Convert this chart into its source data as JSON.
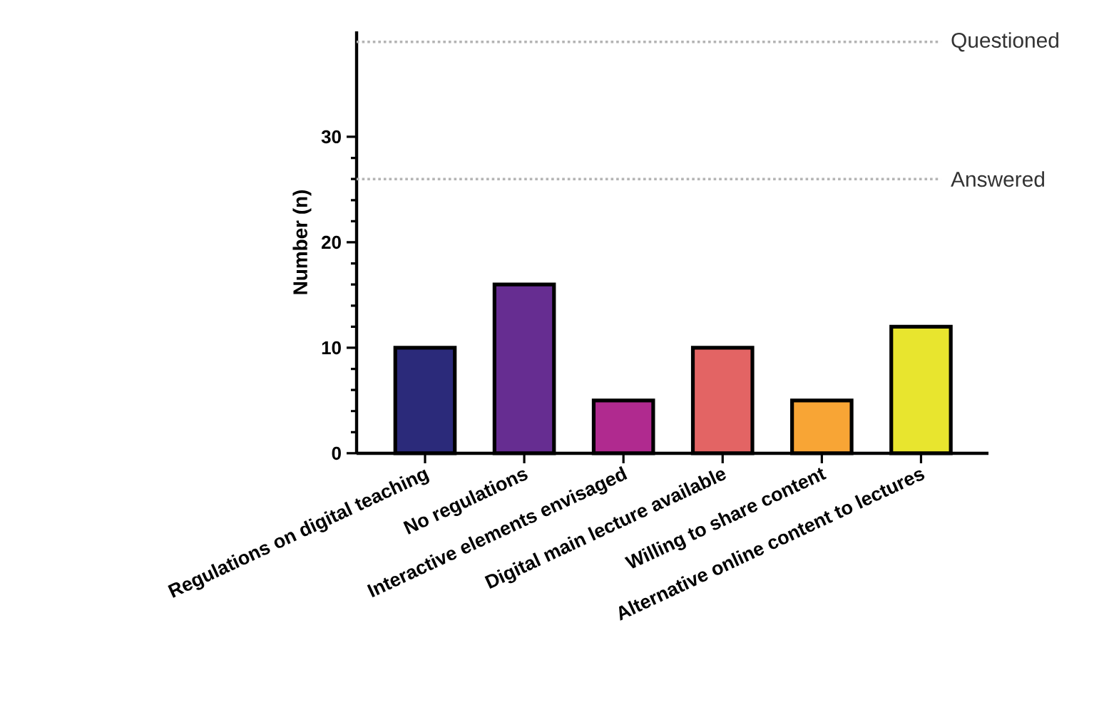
{
  "chart_data": {
    "type": "bar",
    "ylabel": "Number (n)",
    "categories": [
      "Regulations on digital teaching",
      "No regulations",
      "Interactive elements envisaged",
      "Digital main lecture available",
      "Willing to share content",
      "Alternative online content to lectures"
    ],
    "values": [
      10,
      16,
      5,
      10,
      5,
      12
    ],
    "colors": [
      "#2b2a7a",
      "#662d91",
      "#b02a8f",
      "#e36464",
      "#f8a535",
      "#e8e52e"
    ],
    "ylim": [
      0,
      40
    ],
    "yticks": [
      0,
      10,
      20,
      30
    ],
    "ref_lines": [
      {
        "axis": "y",
        "value": 39,
        "label": "Questioned",
        "color": "#b4b4b4",
        "line_style": "dotted"
      },
      {
        "axis": "y",
        "value": 26,
        "label": "Answered",
        "color": "#b4b4b4",
        "line_style": "dotted"
      }
    ]
  }
}
